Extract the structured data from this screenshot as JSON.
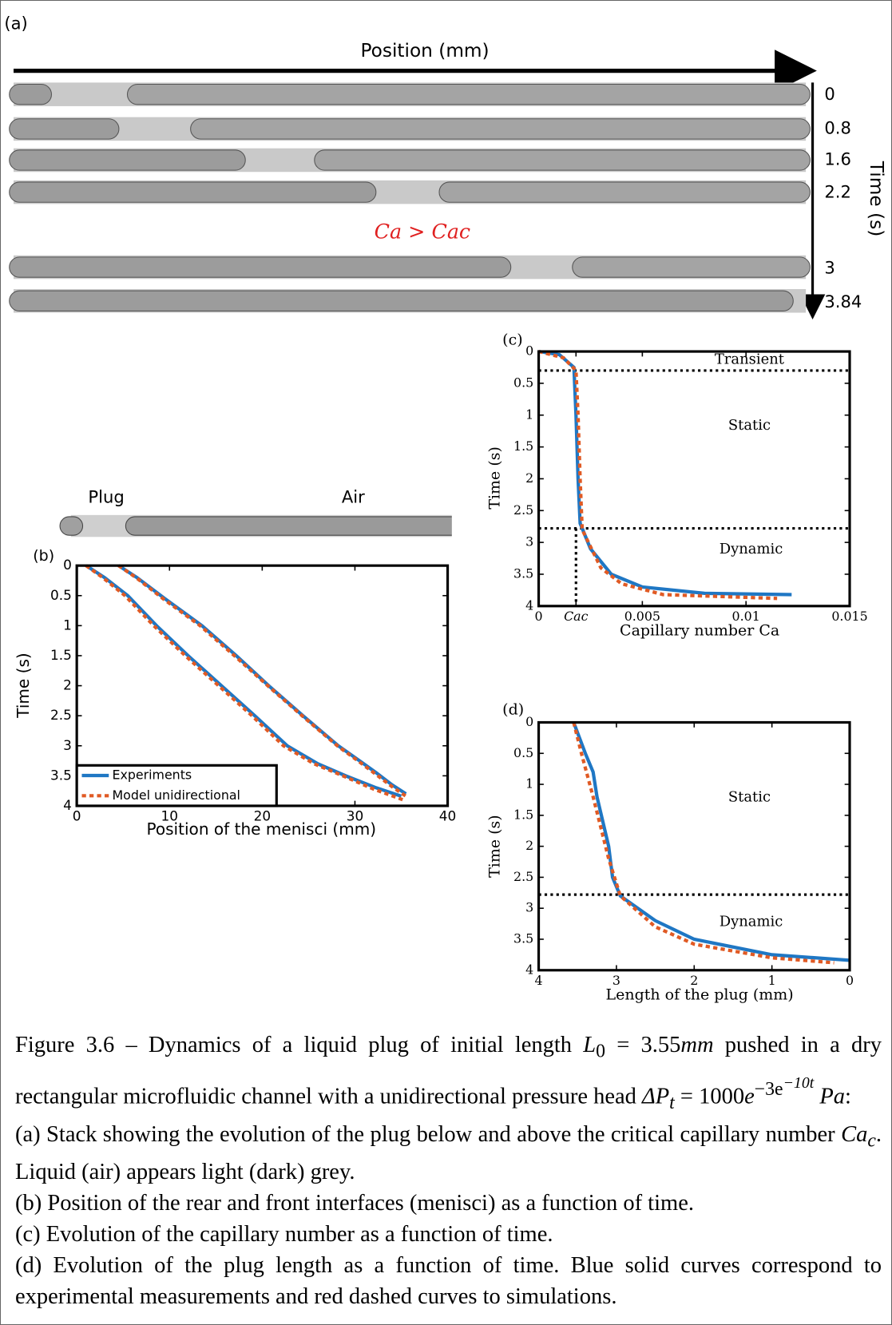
{
  "panel_a": {
    "label": "(a)",
    "x_label": "Position (mm)",
    "y_label": "Time (s)",
    "annotation": "Ca > Cac",
    "times": [
      "0",
      "0.8",
      "1.6",
      "2.2",
      "3",
      "3.84"
    ]
  },
  "chart_data": [
    {
      "type": "line",
      "label": "(b)",
      "strip_labels": [
        "Plug",
        "Air"
      ],
      "x_label": "Position of the menisci (mm)",
      "y_label": "Time (s)",
      "xlim": [
        0,
        40
      ],
      "xticks": [
        0,
        10,
        20,
        30,
        40
      ],
      "ylim": [
        4,
        0
      ],
      "yticks": [
        0,
        0.5,
        1,
        1.5,
        2,
        2.5,
        3,
        3.5,
        4
      ],
      "legend": "lower left",
      "series": [
        {
          "name": "Experiments",
          "color": "#1f77c4",
          "style": "solid",
          "lines": [
            {
              "x": [
                1.0,
                3.0,
                5.5,
                8.6,
                12.0,
                15.6,
                19.2,
                22.7,
                26.0,
                29.0,
                32.3,
                35.0
              ],
              "values": [
                0,
                0.2,
                0.5,
                1.0,
                1.5,
                2.0,
                2.5,
                3.0,
                3.3,
                3.5,
                3.7,
                3.84
              ]
            },
            {
              "x": [
                4.5,
                6.5,
                9.5,
                13.5,
                17.2,
                20.7,
                24.4,
                28.2,
                30.5,
                32.3,
                34.0,
                35.5
              ],
              "values": [
                0,
                0.2,
                0.55,
                1.0,
                1.5,
                2.0,
                2.5,
                3.0,
                3.25,
                3.45,
                3.65,
                3.8
              ]
            }
          ]
        },
        {
          "name": "Model unidirectional",
          "color": "#e05a24",
          "style": "dashed",
          "lines": [
            {
              "x": [
                1.0,
                2.8,
                5.2,
                8.3,
                11.7,
                15.3,
                18.9,
                22.3,
                25.6,
                28.7,
                32.0,
                35.2
              ],
              "values": [
                0,
                0.2,
                0.5,
                1.0,
                1.5,
                2.0,
                2.5,
                3.0,
                3.3,
                3.5,
                3.72,
                3.9
              ]
            },
            {
              "x": [
                4.5,
                6.4,
                9.3,
                13.3,
                17.0,
                20.6,
                24.3,
                28.1,
                30.5,
                32.3,
                34.0,
                35.6
              ],
              "values": [
                0,
                0.2,
                0.55,
                1.0,
                1.5,
                2.0,
                2.5,
                3.0,
                3.27,
                3.48,
                3.68,
                3.85
              ]
            }
          ]
        }
      ]
    },
    {
      "type": "line",
      "label": "(c)",
      "x_label": "Capillary number Ca",
      "y_label": "Time (s)",
      "xlim": [
        0,
        0.015
      ],
      "xticks": [
        0,
        {
          "value": 0.0018,
          "label": "Cac"
        },
        0.005,
        0.01,
        0.015
      ],
      "ylim": [
        4,
        0
      ],
      "yticks": [
        0,
        0.5,
        1,
        1.5,
        2,
        2.5,
        3,
        3.5,
        4
      ],
      "ref_lines": [
        {
          "y": 0.3
        },
        {
          "y": 2.78
        },
        {
          "x": 0.0018,
          "y_from": 2.78
        }
      ],
      "annotations": [
        "Transient",
        "Static",
        "Dynamic"
      ],
      "series": [
        {
          "color": "#1f77c4",
          "style": "solid",
          "lines": [
            {
              "x": [
                0,
                0.001,
                0.0017,
                0.0018,
                0.0019,
                0.002,
                0.0025,
                0.0035,
                0.005,
                0.008,
                0.0122
              ],
              "values": [
                0,
                0.05,
                0.25,
                1.0,
                2.0,
                2.7,
                3.1,
                3.5,
                3.7,
                3.8,
                3.82
              ]
            }
          ]
        },
        {
          "color": "#e05a24",
          "style": "dashed",
          "lines": [
            {
              "x": [
                0,
                0.0012,
                0.0018,
                0.0019,
                0.002,
                0.0021,
                0.003,
                0.004,
                0.006,
                0.0115
              ],
              "values": [
                0,
                0.1,
                0.3,
                1.0,
                2.0,
                2.8,
                3.4,
                3.65,
                3.82,
                3.88
              ]
            }
          ]
        }
      ]
    },
    {
      "type": "line",
      "label": "(d)",
      "x_label": "Length of the plug (mm)",
      "y_label": "Time (s)",
      "xlim": [
        4,
        0
      ],
      "xticks": [
        4,
        3,
        2,
        1,
        0
      ],
      "ylim": [
        4,
        0
      ],
      "yticks": [
        0,
        0.5,
        1,
        1.5,
        2,
        2.5,
        3,
        3.5,
        4
      ],
      "ref_lines": [
        {
          "y": 2.78
        }
      ],
      "annotations": [
        "Static",
        "Dynamic"
      ],
      "series": [
        {
          "color": "#1f77c4",
          "style": "solid",
          "lines": [
            {
              "x": [
                3.55,
                3.4,
                3.3,
                3.25,
                3.1,
                3.05,
                2.95,
                2.5,
                2.0,
                1.0,
                0
              ],
              "values": [
                0,
                0.5,
                0.8,
                1.2,
                2.0,
                2.5,
                2.8,
                3.2,
                3.5,
                3.75,
                3.84
              ]
            }
          ]
        },
        {
          "color": "#e05a24",
          "style": "dashed",
          "lines": [
            {
              "x": [
                3.55,
                3.45,
                3.3,
                3.1,
                2.95,
                2.5,
                2.0,
                1.0,
                0.2
              ],
              "values": [
                0,
                0.5,
                1.2,
                2.2,
                2.8,
                3.3,
                3.58,
                3.8,
                3.88
              ]
            }
          ]
        }
      ]
    }
  ],
  "caption": {
    "intro": [
      "Figure 3.6 – Dynamics of a liquid plug of initial length ",
      "L",
      "0",
      " = 3.55",
      "mm",
      " pushed in a dry rectangular microfluidic channel with a unidirectional pressure head ",
      "ΔP",
      "t",
      " = 1000",
      "e",
      "−3e",
      "−10t",
      "Pa",
      ":"
    ],
    "item_a": [
      "(a) Stack showing the evolution of the plug below and above the critical capillary number ",
      "Ca",
      "c",
      ". Liquid (air) appears light (dark) grey."
    ],
    "item_b": "(b) Position of the rear and front interfaces (menisci) as a function of time.",
    "item_c": "(c) Evolution of the capillary number as a function of time.",
    "item_d": "(d) Evolution of the plug length as a function of time. Blue solid curves correspond to experimental measurements and red dashed curves to simulations."
  }
}
